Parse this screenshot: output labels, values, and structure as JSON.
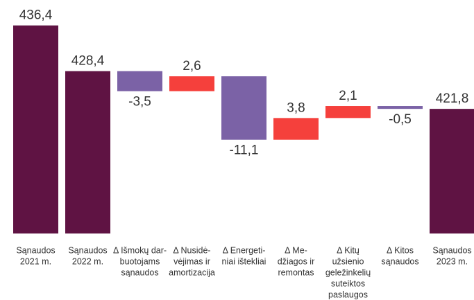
{
  "chart_data": {
    "type": "waterfall",
    "categories": [
      [
        "Sąnaudos",
        "2021 m."
      ],
      [
        "Sąnaudos",
        "2022 m."
      ],
      [
        "Δ Išmokų dar-",
        "buotojams",
        "sąnaudos"
      ],
      [
        "Δ Nusidė-",
        "vėjimas ir",
        "amortizacija"
      ],
      [
        "Δ Energeti-",
        "niai ištekliai"
      ],
      [
        "Δ Me-",
        "džiagos ir",
        "remontas"
      ],
      [
        "Δ Kitų",
        "užsienio",
        "geležinkelių",
        "suteiktos",
        "paslaugos"
      ],
      [
        "Δ Kitos",
        "sąnaudos"
      ],
      [
        "Sąnaudos",
        "2023 m."
      ]
    ],
    "values": [
      436.4,
      428.4,
      -3.5,
      2.6,
      -11.1,
      3.8,
      2.1,
      -0.5,
      421.8
    ],
    "value_labels": [
      "436,4",
      "428,4",
      "-3,5",
      "2,6",
      "-11,1",
      "3,8",
      "2,1",
      "-0,5",
      "421,8"
    ],
    "measure": [
      "total",
      "total",
      "relative",
      "relative",
      "relative",
      "relative",
      "relative",
      "relative",
      "total"
    ],
    "colors": [
      "#5f1343",
      "#5f1343",
      "#7b62a6",
      "#f5403c",
      "#7b62a6",
      "#f5403c",
      "#f5403c",
      "#7b62a6",
      "#5f1343"
    ],
    "ylim": [
      400,
      440
    ]
  }
}
